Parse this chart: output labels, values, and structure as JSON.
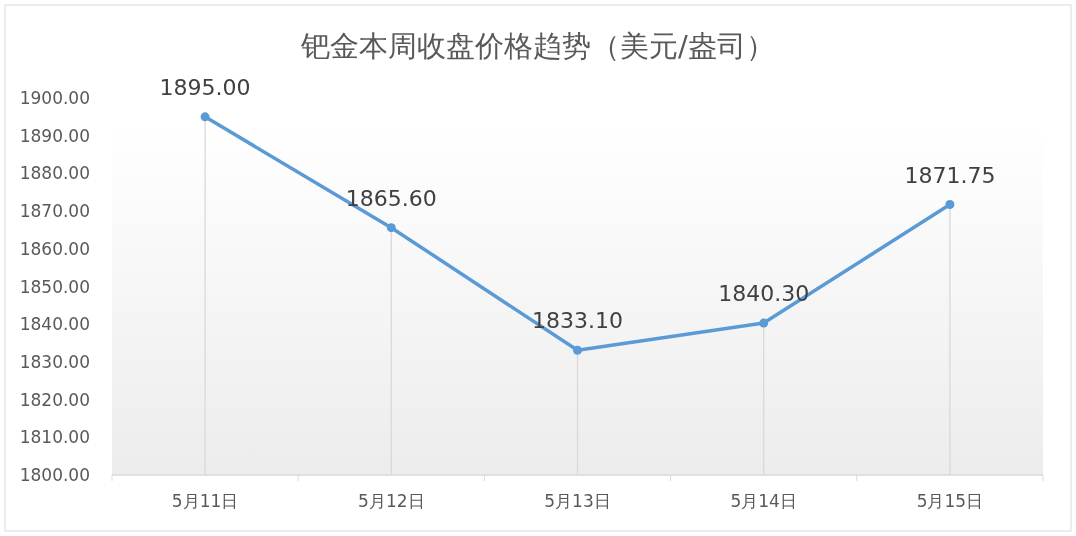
{
  "chart_data": {
    "type": "line",
    "title": "钯金本周收盘价格趋势（美元/盎司）",
    "categories": [
      "5月11日",
      "5月12日",
      "5月13日",
      "5月14日",
      "5月15日"
    ],
    "series": [
      {
        "color": "#5b9bd5",
        "values": [
          1895.0,
          1865.6,
          1833.1,
          1840.3,
          1871.75
        ]
      }
    ],
    "ylim": [
      1800,
      1900
    ],
    "yticks": [
      {
        "value": 1800,
        "label": "1800.00"
      },
      {
        "value": 1810,
        "label": "1810.00"
      },
      {
        "value": 1820,
        "label": "1820.00"
      },
      {
        "value": 1830,
        "label": "1830.00"
      },
      {
        "value": 1840,
        "label": "1840.00"
      },
      {
        "value": 1850,
        "label": "1850.00"
      },
      {
        "value": 1860,
        "label": "1860.00"
      },
      {
        "value": 1870,
        "label": "1870.00"
      },
      {
        "value": 1880,
        "label": "1880.00"
      },
      {
        "value": 1890,
        "label": "1890.00"
      },
      {
        "value": 1900,
        "label": "1900.00"
      }
    ],
    "value_labels": [
      "1895.00",
      "1865.60",
      "1833.10",
      "1840.30",
      "1871.75"
    ],
    "marker": "circle",
    "line_style": "solid",
    "grid": "x"
  }
}
